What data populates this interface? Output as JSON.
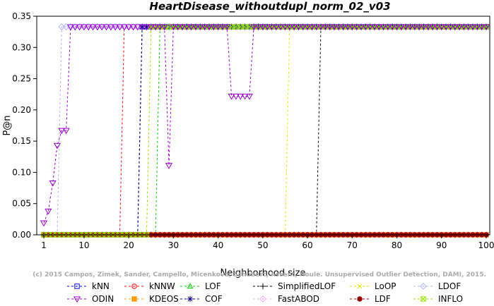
{
  "chart_data": {
    "type": "line",
    "title": "HeartDisease_withoutdupl_norm_02_v03",
    "xlabel": "Neighborhood size",
    "ylabel": "P@n",
    "xlim": [
      1,
      100
    ],
    "ylim": [
      0,
      0.35
    ],
    "xticks": [
      1,
      10,
      20,
      30,
      40,
      50,
      60,
      70,
      80,
      90,
      100
    ],
    "xtick_labels": [
      "1",
      "10",
      "20",
      "30",
      "40",
      "50",
      "60",
      "70",
      "80",
      "90",
      "100"
    ],
    "yticks": [
      0,
      0.05,
      0.1,
      0.15,
      0.2,
      0.25,
      0.3,
      0.35
    ],
    "ytick_labels": [
      "0.00",
      "0.05",
      "0.10",
      "0.15",
      "0.20",
      "0.25",
      "0.30",
      "0.35"
    ],
    "grid": false,
    "legend_position": "bottom",
    "watermark": "(c) 2015 Campos, Zimek, Sander, Campello, Micenkova, Schubert, Assent, Houle. Unsupervised Outlier Detection, DAMI, 2015.",
    "series": [
      {
        "name": "kNN",
        "color": "#0000ff",
        "marker": "square",
        "segments": [
          {
            "from": 1,
            "to": 22,
            "value": 0
          },
          {
            "from": 23,
            "to": 100,
            "value": 0.333
          }
        ]
      },
      {
        "name": "kNNW",
        "color": "#ff0000",
        "marker": "circle",
        "segments": [
          {
            "from": 1,
            "to": 18,
            "value": 0
          },
          {
            "from": 19,
            "to": 100,
            "value": 0.333
          }
        ]
      },
      {
        "name": "LOF",
        "color": "#00cc00",
        "marker": "triangle-up",
        "segments": [
          {
            "from": 1,
            "to": 26,
            "value": 0
          },
          {
            "from": 27,
            "to": 100,
            "value": 0.333
          }
        ]
      },
      {
        "name": "SimplifiedLOF",
        "color": "#000000",
        "marker": "plus",
        "segments": [
          {
            "from": 1,
            "to": 62,
            "value": 0
          },
          {
            "from": 63,
            "to": 100,
            "value": 0.333
          }
        ]
      },
      {
        "name": "LoOP",
        "color": "#e6e600",
        "marker": "x",
        "segments": [
          {
            "from": 1,
            "to": 55,
            "value": 0
          },
          {
            "from": 56,
            "to": 100,
            "value": 0.333
          }
        ]
      },
      {
        "name": "LDOF",
        "color": "#b0b0ff",
        "marker": "diamond",
        "segments": [
          {
            "from": 1,
            "to": 4,
            "value": 0
          },
          {
            "from": 5,
            "to": 100,
            "value": 0.333
          }
        ]
      },
      {
        "name": "ODIN",
        "color": "#9900cc",
        "marker": "triangle-down",
        "values": [
          0.019,
          0.038,
          0.083,
          0.143,
          0.167,
          0.167,
          0.333,
          0.333,
          0.333,
          0.333,
          0.333,
          0.333,
          0.333,
          0.333,
          0.333,
          0.333,
          0.333,
          0.333,
          0.333,
          0.333,
          0.333,
          0.333,
          0.333,
          0.333,
          0.333,
          0.333,
          0.333,
          0.333,
          0.111,
          0.333,
          0.333,
          0.333,
          0.333,
          0.333,
          0.333,
          0.333,
          0.333,
          0.333,
          0.333,
          0.333,
          0.333,
          0.333,
          0.222,
          0.222,
          0.222,
          0.222,
          0.222,
          0.333,
          0.333,
          0.333,
          0.333,
          0.333,
          0.333,
          0.333,
          0.333,
          0.333,
          0.333,
          0.333,
          0.333,
          0.333,
          0.333,
          0.333,
          0.333,
          0.333,
          0.333,
          0.333,
          0.333,
          0.333,
          0.333,
          0.333,
          0.333,
          0.333,
          0.333,
          0.333,
          0.333,
          0.333,
          0.333,
          0.333,
          0.333,
          0.333,
          0.333,
          0.333,
          0.333,
          0.333,
          0.333,
          0.333,
          0.333,
          0.333,
          0.333,
          0.333,
          0.333,
          0.333,
          0.333,
          0.333,
          0.333,
          0.333,
          0.333,
          0.333,
          0.333,
          0.333
        ]
      },
      {
        "name": "KDEOS",
        "color": "#ff9900",
        "marker": "square-filled",
        "segments": [
          {
            "from": 1,
            "to": 100,
            "value": 0
          }
        ]
      },
      {
        "name": "COF",
        "color": "#000080",
        "marker": "star",
        "segments": [
          {
            "from": 1,
            "to": 22,
            "value": 0
          },
          {
            "from": 23,
            "to": 100,
            "value": 0.333
          }
        ]
      },
      {
        "name": "FastABOD",
        "color": "#ffaaff",
        "marker": "diamond",
        "segments": [
          {
            "from": 1,
            "to": 100,
            "value": 0
          }
        ]
      },
      {
        "name": "LDF",
        "color": "#990000",
        "marker": "circle-filled",
        "segments": [
          {
            "from": 1,
            "to": 100,
            "value": 0
          }
        ]
      },
      {
        "name": "INFLO",
        "color": "#99dd00",
        "marker": "square-x",
        "segments": [
          {
            "from": 1,
            "to": 24,
            "value": 0
          },
          {
            "from": 25,
            "to": 100,
            "value": 0.333
          }
        ]
      }
    ]
  }
}
